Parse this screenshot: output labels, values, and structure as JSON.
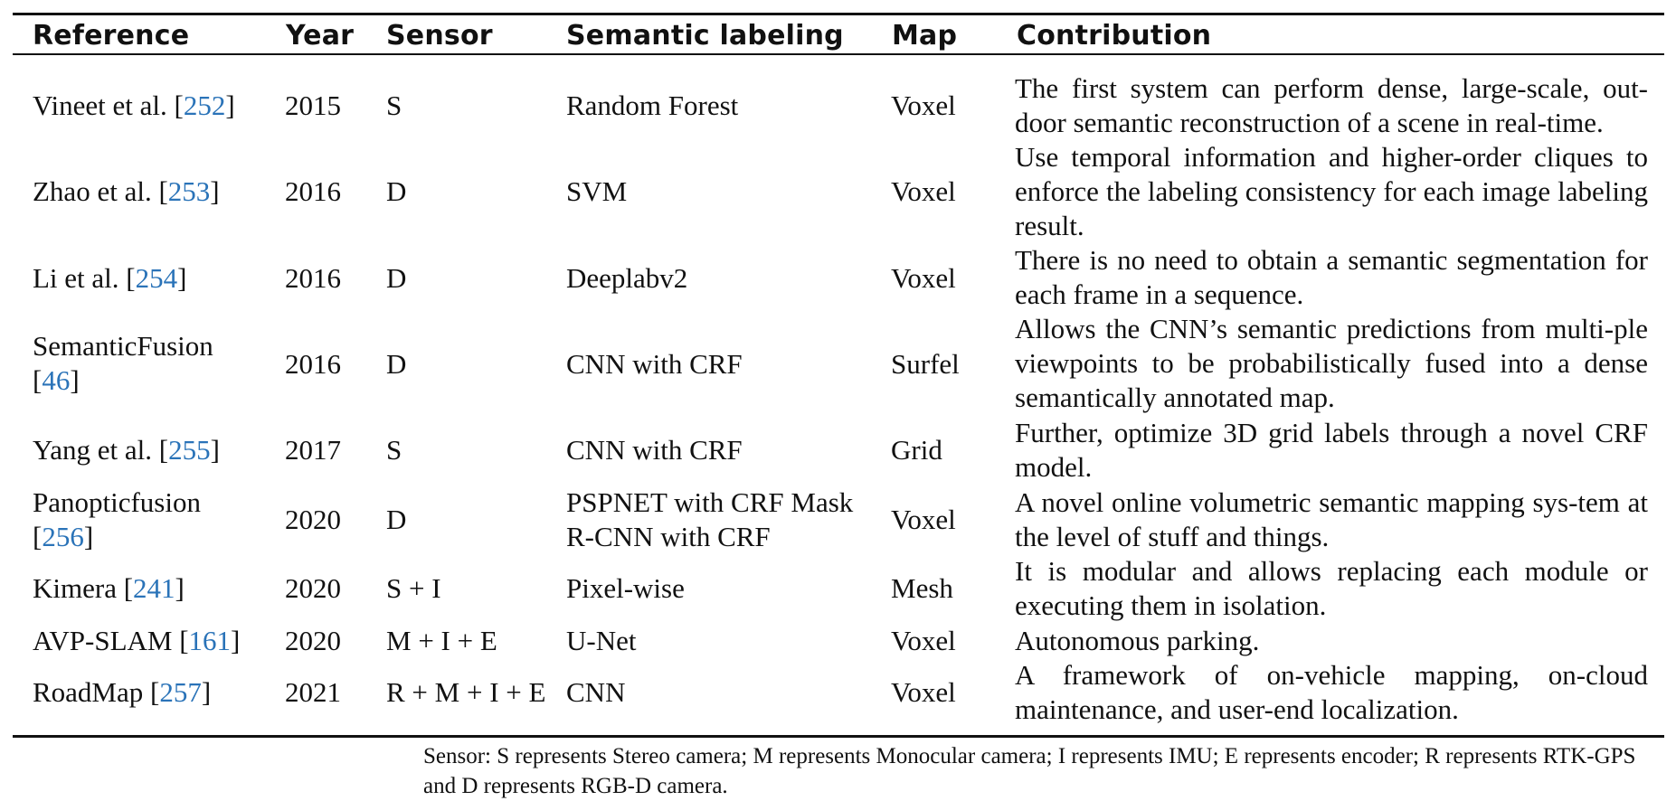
{
  "table": {
    "headers": {
      "reference": "Reference",
      "year": "Year",
      "sensor": "Sensor",
      "semantic": "Semantic labeling",
      "map": "Map",
      "contribution": "Contribution"
    },
    "rows": [
      {
        "ref_name": "Vineet et al. [",
        "ref_cite": "252",
        "ref_close": "]",
        "year": "2015",
        "sensor": "S",
        "semantic": "Random Forest",
        "map": "Voxel",
        "contribution": "The first system can perform dense, large-scale, out-door semantic reconstruction of a scene in real-time."
      },
      {
        "ref_name": "Zhao et al. [",
        "ref_cite": "253",
        "ref_close": "]",
        "year": "2016",
        "sensor": "D",
        "semantic": "SVM",
        "map": "Voxel",
        "contribution": "Use temporal information and higher-order cliques to enforce the labeling consistency for each image labeling result."
      },
      {
        "ref_name": "Li et al. [",
        "ref_cite": "254",
        "ref_close": "]",
        "year": "2016",
        "sensor": "D",
        "semantic": "Deeplabv2",
        "map": "Voxel",
        "contribution": "There is no need to obtain a semantic segmentation for each frame in a sequence."
      },
      {
        "ref_name": "SemanticFusion",
        "ref_line2_open": "[",
        "ref_cite": "46",
        "ref_close": "]",
        "year": "2016",
        "sensor": "D",
        "semantic": "CNN with CRF",
        "map": "Surfel",
        "contribution": "Allows the CNN’s semantic predictions from multi-ple viewpoints to be probabilistically fused into a dense semantically annotated map."
      },
      {
        "ref_name": "Yang et al. [",
        "ref_cite": "255",
        "ref_close": "]",
        "year": "2017",
        "sensor": "S",
        "semantic": "CNN with CRF",
        "map": "Grid",
        "contribution": "Further, optimize 3D grid labels through a novel CRF model."
      },
      {
        "ref_name": "Panopticfusion",
        "ref_line2_open": "[",
        "ref_cite": "256",
        "ref_close": "]",
        "year": "2020",
        "sensor": "D",
        "semantic": "PSPNET with CRF Mask",
        "semantic_line2": "R-CNN with CRF",
        "map": "Voxel",
        "contribution": "A novel online volumetric semantic mapping sys-tem at the level of stuff and things."
      },
      {
        "ref_name": "Kimera [",
        "ref_cite": "241",
        "ref_close": "]",
        "year": "2020",
        "sensor": "S + I",
        "semantic": "Pixel-wise",
        "map": "Mesh",
        "contribution": "It is modular and allows replacing each module or executing them in isolation."
      },
      {
        "ref_name": "AVP-SLAM [",
        "ref_cite": "161",
        "ref_close": "]",
        "year": "2020",
        "sensor": "M + I + E",
        "semantic": "U-Net",
        "map": "Voxel",
        "contribution": "Autonomous parking."
      },
      {
        "ref_name": "RoadMap [",
        "ref_cite": "257",
        "ref_close": "]",
        "year": "2021",
        "sensor": "R + M + I + E",
        "semantic": "CNN",
        "map": "Voxel",
        "contribution": "A framework of on-vehicle mapping, on-cloud maintenance, and user-end localization."
      }
    ],
    "footnote": "Sensor: S represents Stereo camera; M represents Monocular camera; I represents IMU; E represents encoder; R represents RTK-GPS and D represents RGB-D camera.",
    "colors": {
      "citation": "#2a73b8",
      "text": "#111111",
      "rule": "#111111"
    }
  }
}
